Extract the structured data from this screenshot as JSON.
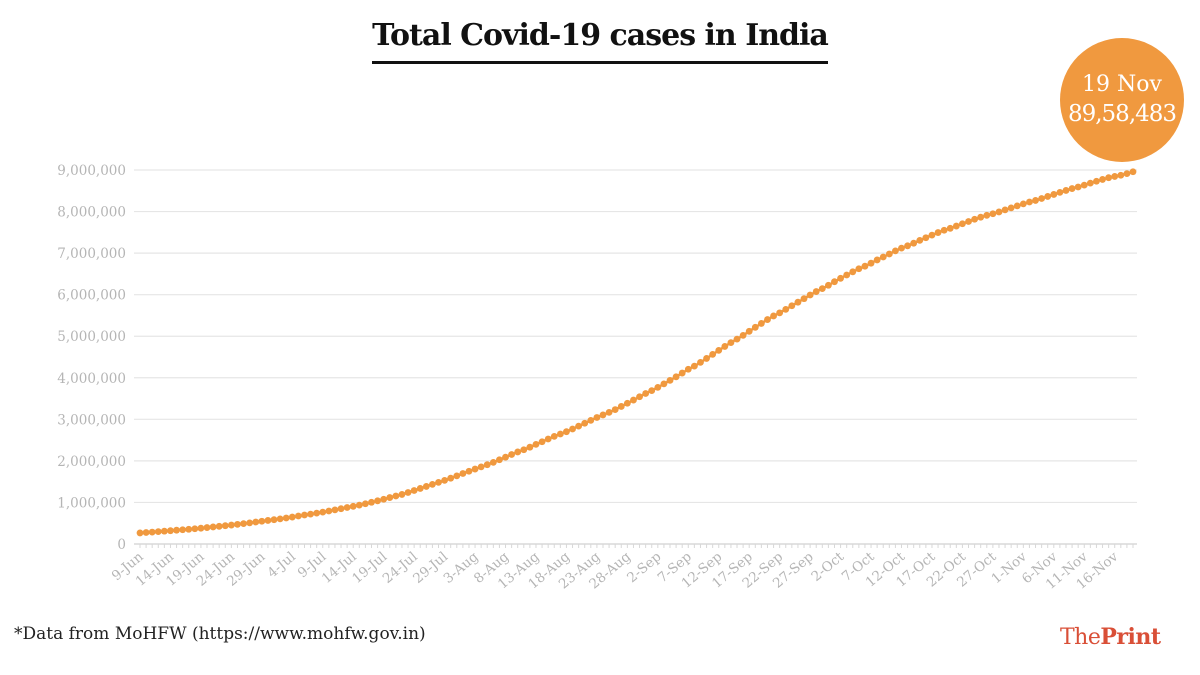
{
  "title": "Total Covid-19 cases in India",
  "callout": {
    "date": "19 Nov",
    "value": "89,58,483"
  },
  "footnote": "*Data from MoHFW (https://www.mohfw.gov.in)",
  "brand": {
    "part1": "The",
    "part2": "Print"
  },
  "colors": {
    "line": "#f0993f",
    "grid": "#e6e6e6",
    "label": "#b5b5b5",
    "brand": "#d94f37"
  },
  "chart_data": {
    "type": "line",
    "title": "Total Covid-19 cases in India",
    "xlabel": "",
    "ylabel": "",
    "ylim": [
      0,
      9000000
    ],
    "yticks": [
      0,
      1000000,
      2000000,
      3000000,
      4000000,
      5000000,
      6000000,
      7000000,
      8000000,
      9000000
    ],
    "ytick_labels": [
      "0",
      "1,000,000",
      "2,000,000",
      "3,000,000",
      "4,000,000",
      "5,000,000",
      "6,000,000",
      "7,000,000",
      "8,000,000",
      "9,000,000"
    ],
    "grid": true,
    "x_tick_labels": [
      "9-Jun",
      "14-Jun",
      "19-Jun",
      "24-Jun",
      "29-Jun",
      "4-Jul",
      "9-Jul",
      "14-Jul",
      "19-Jul",
      "24-Jul",
      "29-Jul",
      "3-Aug",
      "8-Aug",
      "13-Aug",
      "18-Aug",
      "23-Aug",
      "28-Aug",
      "2-Sep",
      "7-Sep",
      "12-Sep",
      "17-Sep",
      "22-Sep",
      "27-Sep",
      "2-Oct",
      "7-Oct",
      "12-Oct",
      "17-Oct",
      "22-Oct",
      "27-Oct",
      "1-Nov",
      "6-Nov",
      "11-Nov",
      "16-Nov"
    ],
    "start_date": "9-Jun",
    "end_date": "19-Nov",
    "series": [
      {
        "name": "",
        "values": [
          266598,
          276583,
          286579,
          297535,
          308993,
          320922,
          332424,
          343091,
          354065,
          366946,
          380532,
          395048,
          410461,
          425282,
          440215,
          456183,
          473105,
          490401,
          508953,
          528859,
          548318,
          566840,
          585493,
          604641,
          625544,
          648315,
          673165,
          697413,
          719665,
          742417,
          767296,
          793802,
          820916,
          849553,
          878254,
          906752,
          936181,
          968876,
          1003832,
          1038716,
          1077618,
          1118043,
          1155191,
          1192915,
          1238635,
          1287945,
          1337022,
          1385522,
          1435453,
          1483156,
          1531669,
          1583792,
          1638870,
          1695988,
          1750723,
          1803695,
          1855745,
          1908254,
          1964536,
          2027074,
          2088611,
          2153010,
          2215074,
          2268675,
          2329638,
          2396637,
          2461190,
          2526192,
          2589682,
          2647663,
          2702742,
          2767273,
          2836925,
          2905823,
          2975701,
          3044940,
          3106348,
          3167323,
          3234474,
          3310234,
          3387500,
          3463972,
          3542733,
          3621245,
          3691166,
          3769523,
          3853406,
          3936747,
          4023179,
          4113811,
          4204613,
          4280422,
          4370128,
          4465863,
          4562414,
          4659984,
          4754356,
          4846427,
          4930236,
          5020359,
          5118253,
          5214677,
          5308014,
          5400619,
          5487580,
          5562663,
          5646010,
          5732518,
          5818570,
          5903932,
          5992532,
          6074702,
          6145291,
          6225763,
          6312584,
          6394068,
          6473544,
          6549373,
          6623815,
          6685082,
          6757131,
          6835655,
          6906151,
          6979423,
          7053806,
          7120538,
          7175880,
          7239389,
          7307097,
          7370468,
          7432680,
          7494551,
          7550273,
          7597063,
          7651107,
          7706946,
          7761312,
          7814682,
          7864811,
          7909959,
          7946429,
          7990322,
          8040203,
          8088851,
          8137119,
          8184082,
          8229313,
          8267623,
          8313876,
          8364086,
          8411724,
          8462080,
          8507754,
          8553657,
          8591730,
          8636011,
          8683916,
          8728795,
          8773479,
          8814579,
          8845127,
          8874290,
          8912907,
          8958483
        ]
      }
    ]
  }
}
